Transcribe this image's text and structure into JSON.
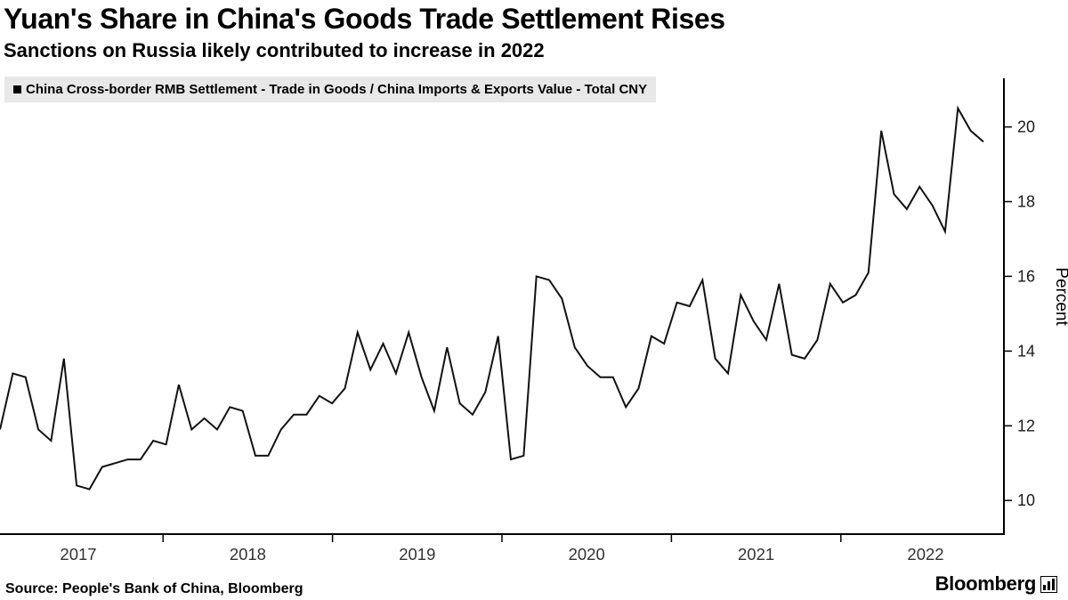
{
  "header": {
    "title": "Yuan's Share in China's Goods Trade Settlement Rises",
    "subtitle": "Sanctions on Russia likely contributed to increase in 2022"
  },
  "legend": {
    "label": "China Cross-border RMB Settlement - Trade in Goods / China Imports & Exports Value - Total CNY"
  },
  "footer": {
    "source": "Source: People's Bank of China, Bloomberg",
    "logo_text": "Bloomberg"
  },
  "chart_data": {
    "type": "line",
    "title": "Yuan's Share in China's Goods Trade Settlement Rises",
    "subtitle": "Sanctions on Russia likely contributed to increase in 2022",
    "ylabel": "Percent",
    "xlabel": "",
    "x_tick_labels": [
      "2017",
      "2018",
      "2019",
      "2020",
      "2021",
      "2022"
    ],
    "y_ticks": [
      10,
      12,
      14,
      16,
      18,
      20
    ],
    "ylim": [
      9.1,
      21.3
    ],
    "grid": false,
    "legend_position": "top-left",
    "frequency": "monthly",
    "line_color": "#111111",
    "series": [
      {
        "name": "China Cross-border RMB Settlement - Trade in Goods / China Imports & Exports Value - Total CNY",
        "color": "#111111",
        "values": [
          11.9,
          13.4,
          13.3,
          11.9,
          11.6,
          13.8,
          10.4,
          10.3,
          10.9,
          11.0,
          11.1,
          11.1,
          11.6,
          11.5,
          13.1,
          11.9,
          12.2,
          11.9,
          12.5,
          12.4,
          11.2,
          11.2,
          11.9,
          12.3,
          12.3,
          12.8,
          12.6,
          13.0,
          14.5,
          13.5,
          14.2,
          13.4,
          14.5,
          13.3,
          12.4,
          14.1,
          12.6,
          12.3,
          12.9,
          14.4,
          11.1,
          11.2,
          16.0,
          15.9,
          15.4,
          14.1,
          13.6,
          13.3,
          13.3,
          12.5,
          13.0,
          14.4,
          14.2,
          15.3,
          15.2,
          15.9,
          13.8,
          13.4,
          15.5,
          14.8,
          14.3,
          15.8,
          13.9,
          13.8,
          14.3,
          15.8,
          15.3,
          15.5,
          16.1,
          19.9,
          18.2,
          17.8,
          18.4,
          17.9,
          17.2,
          20.5,
          19.9,
          19.6
        ]
      }
    ]
  }
}
